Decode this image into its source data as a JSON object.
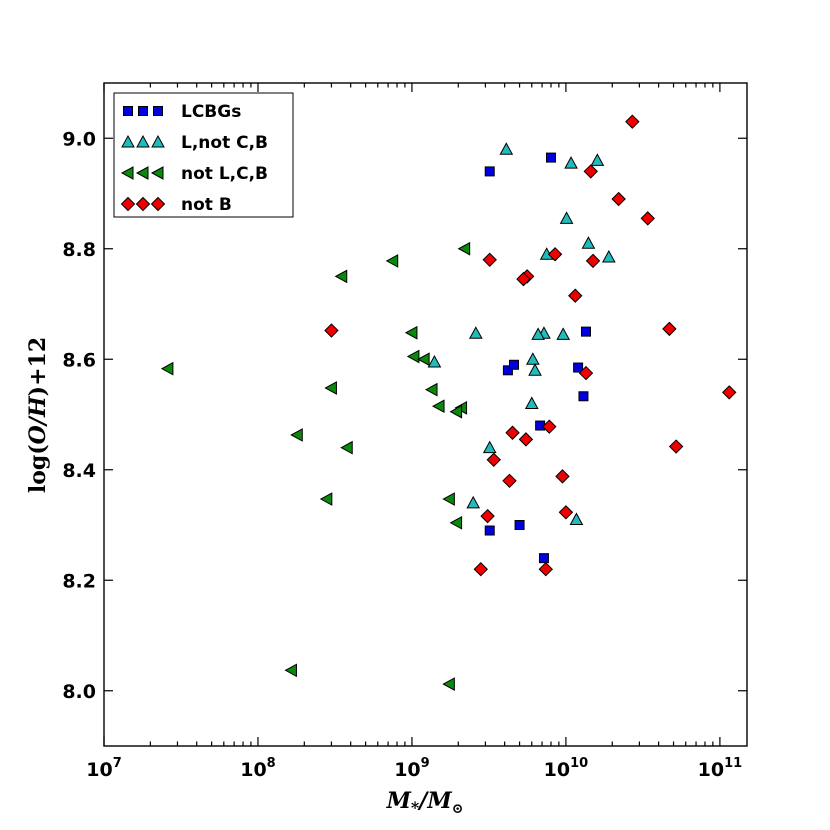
{
  "chart_data": {
    "type": "scatter",
    "xscale": "log",
    "xlim": [
      10000000,
      150000000000
    ],
    "ylim": [
      7.9,
      9.1
    ],
    "x_ticks": [
      10000000,
      100000000,
      1000000000,
      10000000000,
      100000000000
    ],
    "x_tick_labels": [
      {
        "base": "10",
        "exp": "7"
      },
      {
        "base": "10",
        "exp": "8"
      },
      {
        "base": "10",
        "exp": "9"
      },
      {
        "base": "10",
        "exp": "10"
      },
      {
        "base": "10",
        "exp": "11"
      }
    ],
    "y_ticks": [
      8.0,
      8.2,
      8.4,
      8.6,
      8.8,
      9.0
    ],
    "y_tick_labels": [
      "8.0",
      "8.2",
      "8.4",
      "8.6",
      "8.8",
      "9.0"
    ],
    "xlabel": {
      "main": "M",
      "sub": "*",
      "slash": "/M",
      "sun": "⊙"
    },
    "ylabel": {
      "prefix": "log(",
      "italic": "O/H",
      "suffix": ")+12"
    },
    "legend_position": "upper-left",
    "grid": false,
    "series": [
      {
        "name": "LCBGs",
        "marker": "square",
        "color": "#0000dd",
        "points": [
          [
            3200000000,
            8.94
          ],
          [
            8000000000,
            8.965
          ],
          [
            13500000000,
            8.65
          ],
          [
            4200000000,
            8.58
          ],
          [
            4600000000,
            8.59
          ],
          [
            12000000000,
            8.585
          ],
          [
            13000000000,
            8.533
          ],
          [
            6800000000,
            8.48
          ],
          [
            5000000000,
            8.3
          ],
          [
            3200000000,
            8.29
          ],
          [
            7200000000,
            8.24
          ]
        ]
      },
      {
        "name": "L,not C,B",
        "marker": "triangle-up",
        "color": "#22bbbb",
        "points": [
          [
            4100000000,
            8.98
          ],
          [
            10800000000,
            8.955
          ],
          [
            16000000000,
            8.96
          ],
          [
            10100000000,
            8.855
          ],
          [
            14000000000,
            8.81
          ],
          [
            7500000000,
            8.79
          ],
          [
            19000000000,
            8.785
          ],
          [
            2600000000,
            8.647
          ],
          [
            7200000000,
            8.647
          ],
          [
            6600000000,
            8.645
          ],
          [
            9600000000,
            8.645
          ],
          [
            1400000000,
            8.595
          ],
          [
            6100000000,
            8.6
          ],
          [
            6300000000,
            8.58
          ],
          [
            6000000000,
            8.52
          ],
          [
            3200000000,
            8.44
          ],
          [
            2500000000,
            8.34
          ],
          [
            11700000000,
            8.31
          ]
        ]
      },
      {
        "name": "not L,C,B",
        "marker": "triangle-left",
        "color": "#0a8a0a",
        "points": [
          [
            2200000000,
            8.8
          ],
          [
            750000000,
            8.778
          ],
          [
            350000000,
            8.75
          ],
          [
            1000000000,
            8.648
          ],
          [
            1030000000,
            8.605
          ],
          [
            1200000000,
            8.6
          ],
          [
            26000000,
            8.583
          ],
          [
            300000000,
            8.548
          ],
          [
            1350000000,
            8.545
          ],
          [
            1500000000,
            8.515
          ],
          [
            2100000000,
            8.512
          ],
          [
            1950000000,
            8.505
          ],
          [
            180000000,
            8.463
          ],
          [
            380000000,
            8.44
          ],
          [
            1750000000,
            8.347
          ],
          [
            280000000,
            8.347
          ],
          [
            1950000000,
            8.304
          ],
          [
            165000000,
            8.037
          ],
          [
            1750000000,
            8.012
          ]
        ]
      },
      {
        "name": "not B",
        "marker": "diamond",
        "color": "#ee0000",
        "points": [
          [
            27000000000,
            9.03
          ],
          [
            14500000000,
            8.94
          ],
          [
            22000000000,
            8.89
          ],
          [
            34000000000,
            8.855
          ],
          [
            8500000000,
            8.79
          ],
          [
            3200000000,
            8.78
          ],
          [
            15000000000,
            8.778
          ],
          [
            5600000000,
            8.75
          ],
          [
            5300000000,
            8.745
          ],
          [
            11500000000,
            8.715
          ],
          [
            300000000,
            8.652
          ],
          [
            47000000000,
            8.655
          ],
          [
            13500000000,
            8.575
          ],
          [
            115000000000,
            8.54
          ],
          [
            4500000000,
            8.467
          ],
          [
            7800000000,
            8.478
          ],
          [
            5500000000,
            8.455
          ],
          [
            52000000000,
            8.442
          ],
          [
            3400000000,
            8.418
          ],
          [
            9500000000,
            8.388
          ],
          [
            4300000000,
            8.38
          ],
          [
            10000000000,
            8.323
          ],
          [
            3100000000,
            8.316
          ],
          [
            2800000000,
            8.22
          ],
          [
            7400000000,
            8.22
          ]
        ]
      }
    ]
  }
}
